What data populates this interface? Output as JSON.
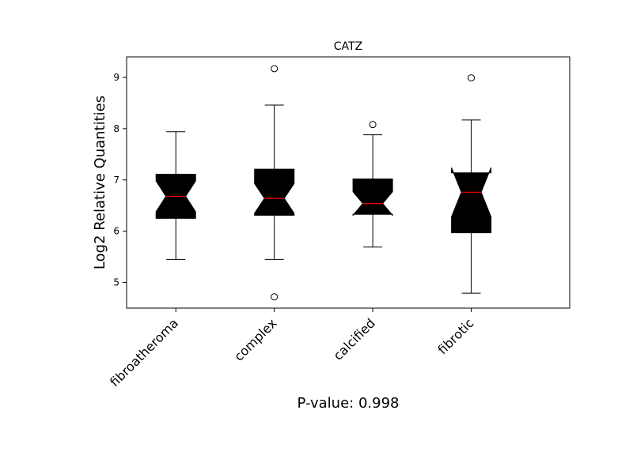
{
  "chart_data": {
    "type": "box",
    "title": "CATZ",
    "ylabel": "Log2 Relative Quantities",
    "footer": "P-value: 0.998",
    "ylim": [
      4.5,
      9.4
    ],
    "yticks": [
      5,
      6,
      7,
      8,
      9
    ],
    "notched": true,
    "box_color": "#000000",
    "median_color": "#ff0000",
    "categories": [
      "fibroatheroma",
      "complex",
      "calcified",
      "fibrotic"
    ],
    "boxes": [
      {
        "name": "fibroatheroma",
        "whislo": 5.45,
        "q1": 6.25,
        "med": 6.68,
        "q3": 7.11,
        "whishi": 7.94,
        "notch_lo": 6.38,
        "notch_hi": 6.98,
        "fliers": []
      },
      {
        "name": "complex",
        "whislo": 5.45,
        "q1": 6.31,
        "med": 6.64,
        "q3": 7.21,
        "whishi": 8.46,
        "notch_lo": 6.35,
        "notch_hi": 6.93,
        "fliers": [
          9.17,
          4.72
        ]
      },
      {
        "name": "calcified",
        "whislo": 5.69,
        "q1": 6.33,
        "med": 6.54,
        "q3": 7.02,
        "whishi": 7.88,
        "notch_lo": 6.31,
        "notch_hi": 6.77,
        "fliers": [
          8.08
        ]
      },
      {
        "name": "fibrotic",
        "whislo": 4.79,
        "q1": 5.97,
        "med": 6.76,
        "q3": 7.14,
        "whishi": 8.17,
        "notch_lo": 6.28,
        "notch_hi": 7.24,
        "fliers": [
          8.99
        ]
      }
    ]
  }
}
